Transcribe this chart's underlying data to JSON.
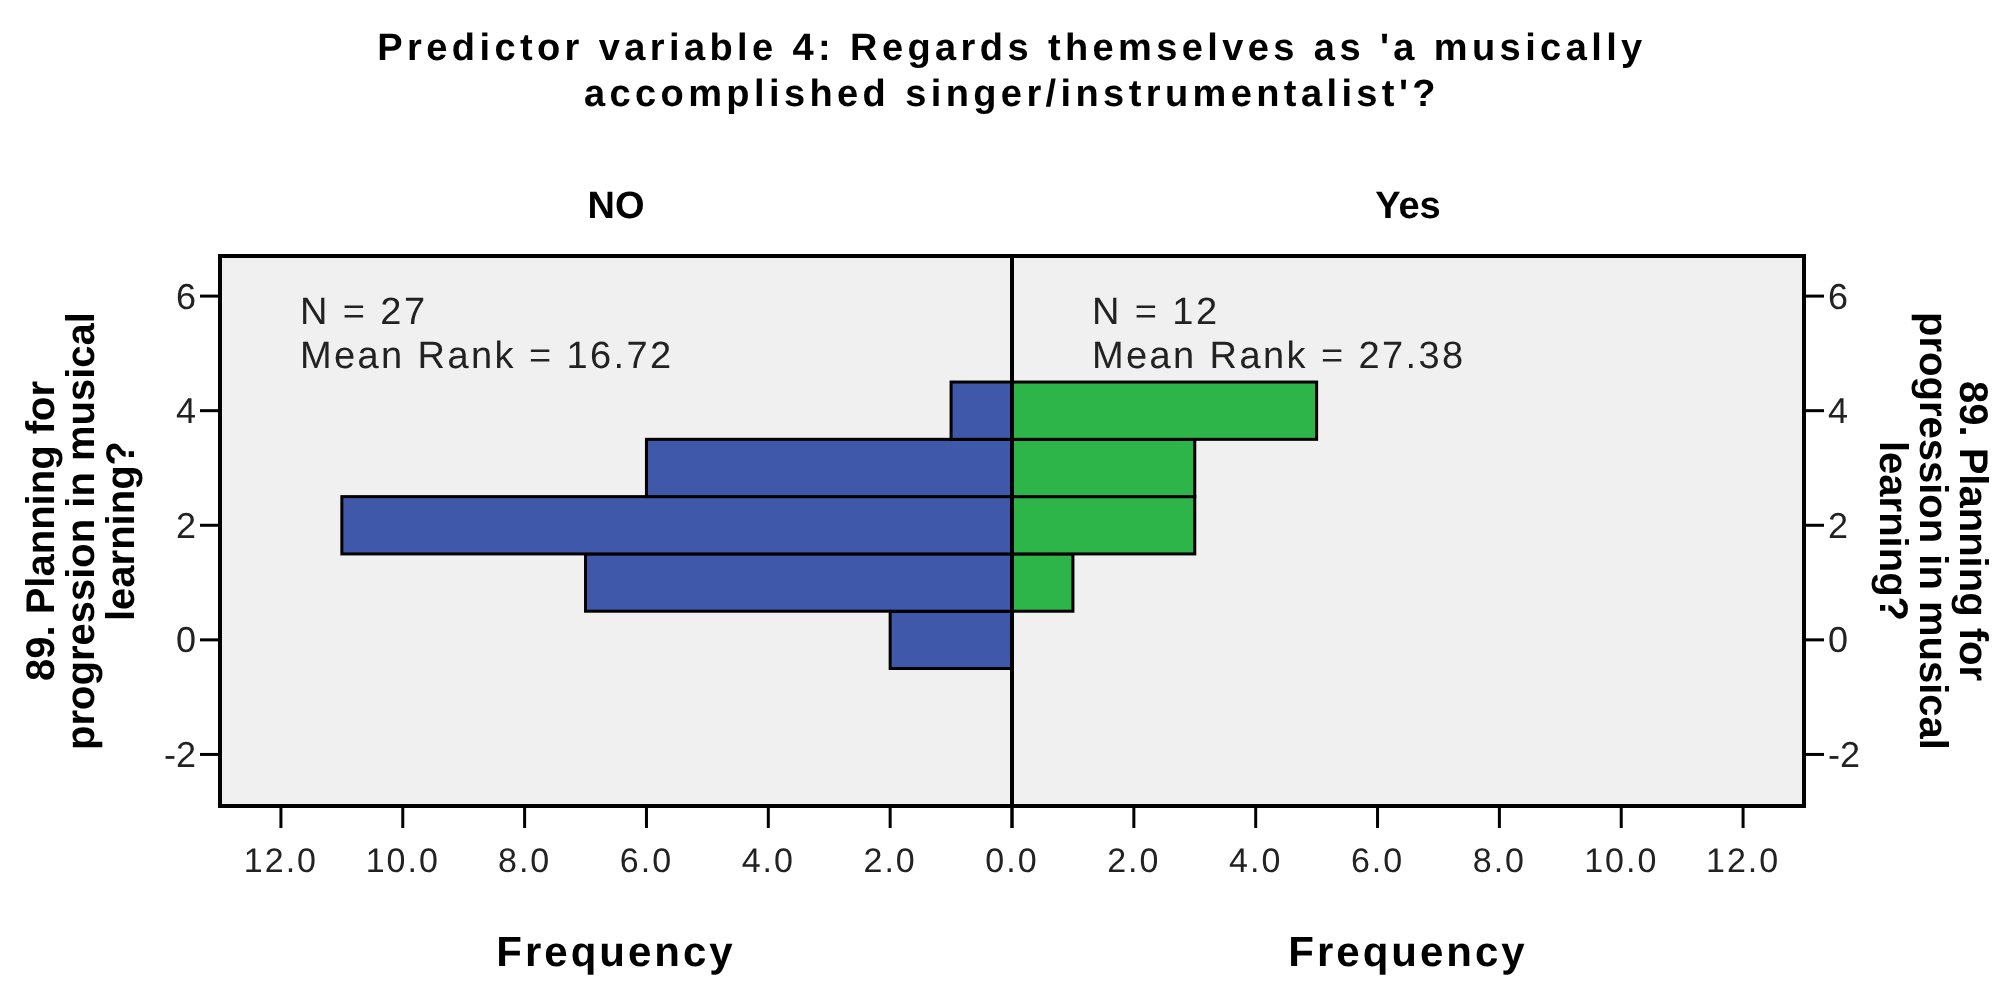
{
  "chart_data": [
    {
      "type": "histogram",
      "orientation": "horizontal",
      "title": "Predictor variable 4: Regards themselves as 'a musically accomplished singer/instrumentalist'?",
      "subtitle": "NO",
      "xlabel": "Frequency",
      "ylabel": "89. Planning for progression in musical learning?",
      "annotations": [
        "N = 27",
        "Mean Rank = 16.72"
      ],
      "bins": [
        -0.5,
        0.5,
        1.5,
        2.5,
        3.5,
        4.5
      ],
      "values": [
        2,
        7,
        11,
        6,
        1
      ],
      "color": "#3f58aa",
      "xlim": [
        13,
        0
      ],
      "xticks": [
        {
          "value": 0,
          "label": null
        },
        {
          "value": 2,
          "label": "2.0"
        },
        {
          "value": 4,
          "label": "4.0"
        },
        {
          "value": 6,
          "label": "6.0"
        },
        {
          "value": 8,
          "label": "8.0"
        },
        {
          "value": 10,
          "label": "10.0"
        },
        {
          "value": 12,
          "label": "12.0"
        }
      ],
      "ylim": [
        -2.9,
        6.7
      ],
      "yticks": [
        -2,
        0,
        2,
        4,
        6
      ]
    },
    {
      "type": "histogram",
      "orientation": "horizontal",
      "subtitle": "Yes",
      "xlabel": "Frequency",
      "ylabel": "89. Planning for progression in musical learning?",
      "annotations": [
        "N = 12",
        "Mean Rank = 27.38"
      ],
      "bins": [
        0.5,
        1.5,
        2.5,
        3.5,
        4.5
      ],
      "values": [
        1,
        3,
        3,
        5
      ],
      "color": "#2db54a",
      "xlim": [
        0,
        13
      ],
      "xticks": [
        {
          "value": 0,
          "label": "0.0"
        },
        {
          "value": 2,
          "label": "2.0"
        },
        {
          "value": 4,
          "label": "4.0"
        },
        {
          "value": 6,
          "label": "6.0"
        },
        {
          "value": 8,
          "label": "8.0"
        },
        {
          "value": 10,
          "label": "10.0"
        },
        {
          "value": 12,
          "label": "12.0"
        }
      ],
      "ylim": [
        -2.9,
        6.7
      ],
      "yticks": [
        -2,
        0,
        2,
        4,
        6
      ]
    }
  ]
}
